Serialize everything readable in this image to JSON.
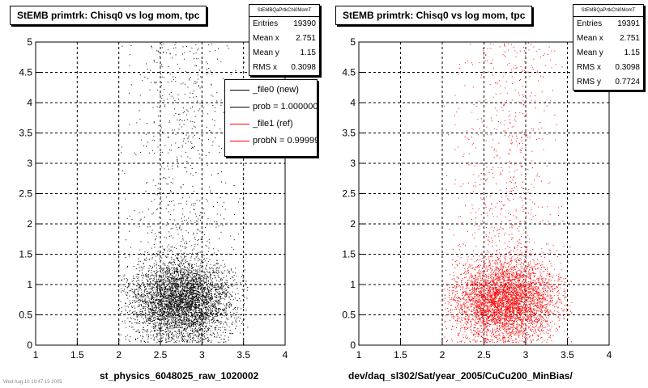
{
  "chart_data": [
    {
      "type": "scatter",
      "title": "StEMB primtrk: Chisq0 vs log mom, tpc",
      "xlabel": "st_physics_6048025_raw_1020002",
      "ylabel": "",
      "xlim": [
        1,
        4
      ],
      "ylim": [
        0,
        5
      ],
      "x_ticks": [
        "1",
        "1.5",
        "2",
        "2.5",
        "3",
        "3.5",
        "4"
      ],
      "y_ticks": [
        "0",
        "0.5",
        "1",
        "1.5",
        "2",
        "2.5",
        "3",
        "3.5",
        "4",
        "4.5",
        "5"
      ],
      "grid": true,
      "marker_color": "#000000",
      "distribution": {
        "x_range": [
          2.0,
          3.55
        ],
        "x_mean": 2.751,
        "x_rms": 0.3098,
        "y_mean": 1.15,
        "y_mode": 0.75,
        "y_range": [
          0.05,
          5
        ],
        "entries": 19390
      },
      "stats": {
        "name": "StEMBQaPrtkChi0MomT",
        "rows": [
          {
            "label": "Entries",
            "value": "19390"
          },
          {
            "label": "Mean x",
            "value": "2.751"
          },
          {
            "label": "Mean y",
            "value": "1.15"
          },
          {
            "label": "RMS x",
            "value": "0.3098"
          }
        ]
      },
      "legend": {
        "placement": "top-right",
        "entries": [
          {
            "label": "_file0 (new)",
            "color": "#000000"
          },
          {
            "label": "prob = 1.000000",
            "color": "#000000"
          },
          {
            "label": "_file1 (ref)",
            "color": "#ff0000"
          },
          {
            "label": "probN = 0.999999",
            "color": "#ff0000"
          }
        ]
      }
    },
    {
      "type": "scatter",
      "title": "StEMB primtrk: Chisq0 vs log mom, tpc",
      "xlabel": "dev/daq_sl302/Sat/year_2005/CuCu200_MinBias/",
      "ylabel": "",
      "xlim": [
        1,
        4
      ],
      "ylim": [
        0,
        5
      ],
      "x_ticks": [
        "1",
        "1.5",
        "2",
        "2.5",
        "3",
        "3.5",
        "4"
      ],
      "y_ticks": [
        "0",
        "0.5",
        "1",
        "1.5",
        "2",
        "2.5",
        "3",
        "3.5",
        "4",
        "4.5",
        "5"
      ],
      "grid": true,
      "marker_color": "#ff0000",
      "distribution": {
        "x_range": [
          2.0,
          3.55
        ],
        "x_mean": 2.751,
        "x_rms": 0.3098,
        "y_mean": 1.15,
        "y_mode": 0.75,
        "y_range": [
          0.05,
          5
        ],
        "entries": 19391
      },
      "stats": {
        "name": "StEMBQaPrtkChi0MomT",
        "rows": [
          {
            "label": "Entries",
            "value": "19391"
          },
          {
            "label": "Mean x",
            "value": "2.751"
          },
          {
            "label": "Mean y",
            "value": "1.15"
          },
          {
            "label": "RMS x",
            "value": "0.3098"
          },
          {
            "label": "RMS y",
            "value": "0.7724"
          }
        ]
      }
    }
  ],
  "footer": "Wed Aug 10 19:47:15 2005"
}
